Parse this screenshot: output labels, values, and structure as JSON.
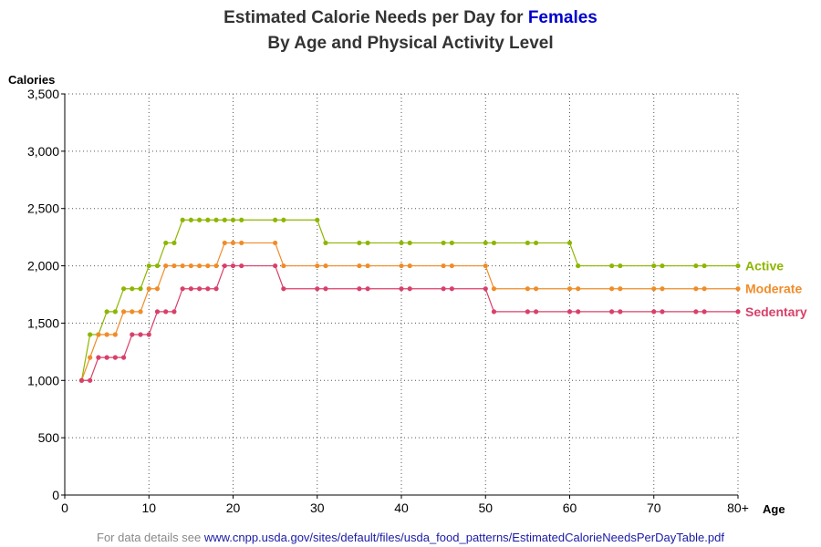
{
  "title": {
    "line1_prefix": "Estimated Calorie Needs per Day for ",
    "line1_highlight": "Females",
    "line2": "By Age and Physical Activity Level"
  },
  "footer": {
    "prefix": "For data details see ",
    "link": "www.cnpp.usda.gov/sites/default/files/usda_food_patterns/EstimatedCalorieNeedsPerDayTable.pdf"
  },
  "colors": {
    "active": "#8db600",
    "moderate": "#f08c28",
    "sedentary": "#d8406a",
    "title_highlight": "#0000cc",
    "grid": "#555555"
  },
  "chart_data": {
    "type": "line",
    "ylabel": "Calories",
    "xlabel": "Age",
    "xlim": [
      0,
      80
    ],
    "ylim": [
      0,
      3500
    ],
    "x_ticks": [
      "0",
      "10",
      "20",
      "30",
      "40",
      "50",
      "60",
      "70",
      "80+"
    ],
    "y_ticks": [
      "0",
      "500",
      "1,000",
      "1,500",
      "2,000",
      "2,500",
      "3,000",
      "3,500"
    ],
    "grid": true,
    "series": [
      {
        "name": "Active",
        "color": "#8db600",
        "points": [
          [
            2,
            1000
          ],
          [
            3,
            1400
          ],
          [
            4,
            1400
          ],
          [
            5,
            1600
          ],
          [
            6,
            1600
          ],
          [
            7,
            1800
          ],
          [
            8,
            1800
          ],
          [
            9,
            1800
          ],
          [
            10,
            2000
          ],
          [
            11,
            2000
          ],
          [
            12,
            2200
          ],
          [
            13,
            2200
          ],
          [
            14,
            2400
          ],
          [
            15,
            2400
          ],
          [
            16,
            2400
          ],
          [
            17,
            2400
          ],
          [
            18,
            2400
          ],
          [
            19,
            2400
          ],
          [
            20,
            2400
          ],
          [
            21,
            2400
          ],
          [
            25,
            2400
          ],
          [
            26,
            2400
          ],
          [
            30,
            2400
          ],
          [
            31,
            2200
          ],
          [
            35,
            2200
          ],
          [
            36,
            2200
          ],
          [
            40,
            2200
          ],
          [
            41,
            2200
          ],
          [
            45,
            2200
          ],
          [
            46,
            2200
          ],
          [
            50,
            2200
          ],
          [
            51,
            2200
          ],
          [
            55,
            2200
          ],
          [
            56,
            2200
          ],
          [
            60,
            2200
          ],
          [
            61,
            2000
          ],
          [
            65,
            2000
          ],
          [
            66,
            2000
          ],
          [
            70,
            2000
          ],
          [
            71,
            2000
          ],
          [
            75,
            2000
          ],
          [
            76,
            2000
          ],
          [
            80,
            2000
          ]
        ]
      },
      {
        "name": "Moderate",
        "color": "#f08c28",
        "points": [
          [
            2,
            1000
          ],
          [
            3,
            1200
          ],
          [
            4,
            1400
          ],
          [
            5,
            1400
          ],
          [
            6,
            1400
          ],
          [
            7,
            1600
          ],
          [
            8,
            1600
          ],
          [
            9,
            1600
          ],
          [
            10,
            1800
          ],
          [
            11,
            1800
          ],
          [
            12,
            2000
          ],
          [
            13,
            2000
          ],
          [
            14,
            2000
          ],
          [
            15,
            2000
          ],
          [
            16,
            2000
          ],
          [
            17,
            2000
          ],
          [
            18,
            2000
          ],
          [
            19,
            2200
          ],
          [
            20,
            2200
          ],
          [
            21,
            2200
          ],
          [
            25,
            2200
          ],
          [
            26,
            2000
          ],
          [
            30,
            2000
          ],
          [
            31,
            2000
          ],
          [
            35,
            2000
          ],
          [
            36,
            2000
          ],
          [
            40,
            2000
          ],
          [
            41,
            2000
          ],
          [
            45,
            2000
          ],
          [
            46,
            2000
          ],
          [
            50,
            2000
          ],
          [
            51,
            1800
          ],
          [
            55,
            1800
          ],
          [
            56,
            1800
          ],
          [
            60,
            1800
          ],
          [
            61,
            1800
          ],
          [
            65,
            1800
          ],
          [
            66,
            1800
          ],
          [
            70,
            1800
          ],
          [
            71,
            1800
          ],
          [
            75,
            1800
          ],
          [
            76,
            1800
          ],
          [
            80,
            1800
          ]
        ]
      },
      {
        "name": "Sedentary",
        "color": "#d8406a",
        "points": [
          [
            2,
            1000
          ],
          [
            3,
            1000
          ],
          [
            4,
            1200
          ],
          [
            5,
            1200
          ],
          [
            6,
            1200
          ],
          [
            7,
            1200
          ],
          [
            8,
            1400
          ],
          [
            9,
            1400
          ],
          [
            10,
            1400
          ],
          [
            11,
            1600
          ],
          [
            12,
            1600
          ],
          [
            13,
            1600
          ],
          [
            14,
            1800
          ],
          [
            15,
            1800
          ],
          [
            16,
            1800
          ],
          [
            17,
            1800
          ],
          [
            18,
            1800
          ],
          [
            19,
            2000
          ],
          [
            20,
            2000
          ],
          [
            21,
            2000
          ],
          [
            25,
            2000
          ],
          [
            26,
            1800
          ],
          [
            30,
            1800
          ],
          [
            31,
            1800
          ],
          [
            35,
            1800
          ],
          [
            36,
            1800
          ],
          [
            40,
            1800
          ],
          [
            41,
            1800
          ],
          [
            45,
            1800
          ],
          [
            46,
            1800
          ],
          [
            50,
            1800
          ],
          [
            51,
            1600
          ],
          [
            55,
            1600
          ],
          [
            56,
            1600
          ],
          [
            60,
            1600
          ],
          [
            61,
            1600
          ],
          [
            65,
            1600
          ],
          [
            66,
            1600
          ],
          [
            70,
            1600
          ],
          [
            71,
            1600
          ],
          [
            75,
            1600
          ],
          [
            76,
            1600
          ],
          [
            80,
            1600
          ]
        ]
      }
    ]
  }
}
